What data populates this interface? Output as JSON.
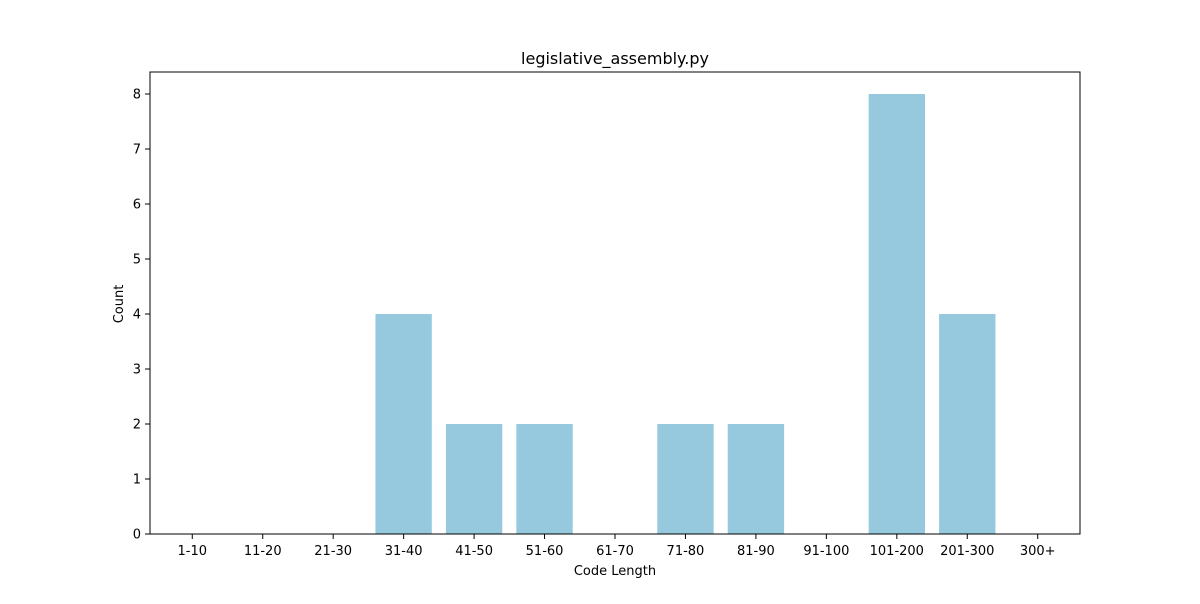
{
  "chart_data": {
    "type": "bar",
    "title": "legislative_assembly.py",
    "xlabel": "Code Length",
    "ylabel": "Count",
    "categories": [
      "1-10",
      "11-20",
      "21-30",
      "31-40",
      "41-50",
      "51-60",
      "61-70",
      "71-80",
      "81-90",
      "91-100",
      "101-200",
      "201-300",
      "300+"
    ],
    "values": [
      0,
      0,
      0,
      4,
      2,
      2,
      0,
      2,
      2,
      0,
      8,
      4,
      0
    ],
    "ylim": [
      0,
      8.4
    ],
    "yticks": [
      "0",
      "1",
      "2",
      "3",
      "4",
      "5",
      "6",
      "7",
      "8"
    ],
    "bar_color": "#96c9dd",
    "grid": false,
    "legend": "none"
  }
}
